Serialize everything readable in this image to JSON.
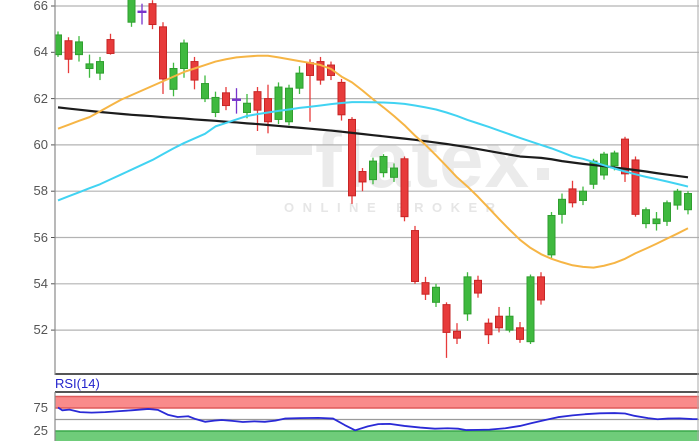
{
  "watermark": {
    "brand": "flatex",
    "tagline": "ONLINE BROKER"
  },
  "colors": {
    "up": "#3fb93f",
    "up_edge": "#2f9e2f",
    "down": "#e73b3b",
    "down_edge": "#c72525",
    "doji": "#7733cc",
    "sma_slow": "#1c1c1c",
    "sma_mid": "#f6b545",
    "sma_fast": "#41d3f2",
    "rsi_line": "#2a2ad6",
    "overbought_fill": "#f98b8b",
    "overbought_edge": "#df5a5a",
    "oversold_fill": "#6fcc7a",
    "oversold_edge": "#3aa84a",
    "grid": "#b3b3b3",
    "axis_text": "#555555",
    "border_dark": "#555555",
    "border_light": "#8a8a8a"
  },
  "chart_data": [
    {
      "type": "candlestick",
      "title": "",
      "xlabel": "",
      "ylabel": "",
      "grid": true,
      "x_ticks": [],
      "y_ticks": [
        66,
        64,
        62,
        60,
        58,
        56,
        54,
        52
      ],
      "ylim": [
        50.1,
        66.26
      ],
      "candles_note": "slot index, open, high, low, close, kind(u=up,d=down,j=doji); slot 6 has no visible candle (above chart top)",
      "candles": [
        [
          0,
          63.9,
          64.9,
          63.8,
          64.75,
          "u"
        ],
        [
          1,
          64.5,
          64.65,
          63.1,
          63.7,
          "d"
        ],
        [
          2,
          63.9,
          64.7,
          63.6,
          64.45,
          "u"
        ],
        [
          3,
          63.3,
          63.9,
          62.9,
          63.5,
          "u"
        ],
        [
          4,
          63.1,
          63.8,
          62.8,
          63.6,
          "u"
        ],
        [
          5,
          64.55,
          64.8,
          63.9,
          63.95,
          "d"
        ],
        [
          7,
          65.3,
          66.5,
          65.1,
          66.45,
          "u"
        ],
        [
          8,
          65.75,
          66.1,
          65.2,
          65.7,
          "j"
        ],
        [
          9,
          66.1,
          66.25,
          65.0,
          65.2,
          "d"
        ],
        [
          10,
          65.1,
          65.3,
          62.2,
          62.85,
          "d"
        ],
        [
          11,
          62.4,
          63.55,
          62.1,
          63.3,
          "u"
        ],
        [
          12,
          63.3,
          64.55,
          62.9,
          64.4,
          "u"
        ],
        [
          13,
          63.6,
          63.8,
          62.4,
          62.8,
          "d"
        ],
        [
          14,
          62.0,
          63.0,
          61.85,
          62.65,
          "u"
        ],
        [
          15,
          61.4,
          62.3,
          61.2,
          62.05,
          "u"
        ],
        [
          16,
          62.25,
          62.5,
          61.5,
          61.7,
          "d"
        ],
        [
          17,
          61.95,
          62.45,
          61.35,
          61.95,
          "j"
        ],
        [
          18,
          61.4,
          62.2,
          61.15,
          61.8,
          "u"
        ],
        [
          19,
          62.3,
          62.5,
          60.6,
          61.5,
          "d"
        ],
        [
          20,
          62.0,
          62.6,
          60.5,
          61.0,
          "d"
        ],
        [
          21,
          61.1,
          62.7,
          60.9,
          62.5,
          "u"
        ],
        [
          22,
          61.0,
          62.6,
          60.85,
          62.45,
          "u"
        ],
        [
          23,
          62.45,
          63.4,
          62.2,
          63.1,
          "u"
        ],
        [
          24,
          63.55,
          63.7,
          61.0,
          63.0,
          "d"
        ],
        [
          25,
          63.6,
          63.8,
          62.6,
          62.8,
          "d"
        ],
        [
          26,
          63.45,
          63.6,
          62.8,
          63.0,
          "d"
        ],
        [
          27,
          62.7,
          62.85,
          61.05,
          61.3,
          "d"
        ],
        [
          28,
          61.1,
          61.2,
          57.45,
          57.8,
          "d"
        ],
        [
          29,
          58.85,
          59.0,
          58.0,
          58.4,
          "d"
        ],
        [
          30,
          58.5,
          59.45,
          58.3,
          59.3,
          "u"
        ],
        [
          31,
          58.8,
          59.6,
          58.6,
          59.5,
          "u"
        ],
        [
          32,
          58.6,
          59.2,
          58.4,
          59.0,
          "u"
        ],
        [
          33,
          59.4,
          59.5,
          56.7,
          56.9,
          "d"
        ],
        [
          34,
          56.3,
          56.5,
          54.0,
          54.1,
          "d"
        ],
        [
          35,
          54.05,
          54.3,
          53.3,
          53.55,
          "d"
        ],
        [
          36,
          53.2,
          54.0,
          53.0,
          53.85,
          "u"
        ],
        [
          37,
          53.1,
          53.2,
          50.8,
          51.9,
          "d"
        ],
        [
          38,
          51.95,
          52.3,
          51.4,
          51.65,
          "d"
        ],
        [
          39,
          52.7,
          54.5,
          52.4,
          54.3,
          "u"
        ],
        [
          40,
          54.15,
          54.35,
          53.4,
          53.6,
          "d"
        ],
        [
          41,
          52.3,
          52.5,
          51.4,
          51.8,
          "d"
        ],
        [
          42,
          52.6,
          53.0,
          51.9,
          52.1,
          "d"
        ],
        [
          43,
          52.0,
          53.0,
          51.9,
          52.6,
          "u"
        ],
        [
          44,
          52.1,
          52.35,
          51.45,
          51.6,
          "d"
        ],
        [
          45,
          51.5,
          54.4,
          51.4,
          54.3,
          "u"
        ],
        [
          46,
          54.3,
          54.5,
          53.1,
          53.3,
          "d"
        ],
        [
          47,
          55.25,
          57.1,
          55.1,
          56.95,
          "u"
        ],
        [
          48,
          57.0,
          57.9,
          56.6,
          57.65,
          "u"
        ],
        [
          49,
          58.1,
          58.45,
          57.3,
          57.5,
          "d"
        ],
        [
          50,
          57.6,
          58.2,
          57.4,
          58.0,
          "u"
        ],
        [
          51,
          58.3,
          59.4,
          58.1,
          59.3,
          "u"
        ],
        [
          52,
          58.7,
          59.7,
          58.5,
          59.6,
          "u"
        ],
        [
          53,
          59.1,
          59.75,
          58.9,
          59.65,
          "u"
        ],
        [
          54,
          60.25,
          60.35,
          58.4,
          58.75,
          "d"
        ],
        [
          55,
          59.35,
          59.5,
          56.9,
          57.0,
          "d"
        ],
        [
          56,
          56.6,
          57.3,
          56.4,
          57.2,
          "u"
        ],
        [
          57,
          56.6,
          57.1,
          56.3,
          56.8,
          "u"
        ],
        [
          58,
          56.7,
          57.6,
          56.5,
          57.5,
          "u"
        ],
        [
          59,
          57.4,
          58.1,
          57.2,
          58.0,
          "u"
        ],
        [
          60,
          57.2,
          58.0,
          57.0,
          57.9,
          "u"
        ]
      ],
      "overlays": [
        {
          "name": "sma-slow-black",
          "color_key": "sma_slow",
          "values": [
            61.62,
            61.57,
            61.52,
            61.47,
            61.42,
            61.38,
            61.34,
            61.3,
            61.27,
            61.24,
            61.2,
            61.17,
            61.14,
            61.1,
            61.07,
            61.04,
            61.0,
            60.97,
            60.93,
            60.9,
            60.86,
            60.82,
            60.78,
            60.74,
            60.7,
            60.66,
            60.62,
            60.57,
            60.52,
            60.47,
            60.42,
            60.37,
            60.32,
            60.27,
            60.22,
            60.16,
            60.1,
            60.04,
            59.97,
            59.9,
            59.82,
            59.74,
            59.66,
            59.58,
            59.5,
            59.47,
            59.44,
            59.38,
            59.3,
            59.24,
            59.18,
            59.13,
            59.08,
            59.02,
            58.97,
            58.91,
            58.85,
            58.78,
            58.72,
            58.66,
            58.6
          ]
        },
        {
          "name": "sma-medium-orange",
          "color_key": "sma_mid",
          "values": [
            60.7,
            60.87,
            61.04,
            61.2,
            61.45,
            61.7,
            61.95,
            62.15,
            62.35,
            62.55,
            62.75,
            62.95,
            63.15,
            63.3,
            63.45,
            63.6,
            63.7,
            63.78,
            63.82,
            63.85,
            63.85,
            63.78,
            63.7,
            63.62,
            63.54,
            63.45,
            63.28,
            62.95,
            62.7,
            62.35,
            61.97,
            61.62,
            61.25,
            60.85,
            60.4,
            60.0,
            59.55,
            59.08,
            58.6,
            58.2,
            57.76,
            57.28,
            56.8,
            56.34,
            55.9,
            55.55,
            55.28,
            55.08,
            54.93,
            54.8,
            54.73,
            54.7,
            54.78,
            54.9,
            55.08,
            55.32,
            55.52,
            55.73,
            55.95,
            56.17,
            56.4
          ]
        },
        {
          "name": "sma-fast-cyan",
          "color_key": "sma_fast",
          "values": [
            57.6,
            57.78,
            57.95,
            58.13,
            58.3,
            58.51,
            58.72,
            58.93,
            59.14,
            59.35,
            59.6,
            59.85,
            60.08,
            60.28,
            60.48,
            60.8,
            60.95,
            61.1,
            61.25,
            61.33,
            61.4,
            61.47,
            61.53,
            61.6,
            61.65,
            61.7,
            61.76,
            61.81,
            61.85,
            61.85,
            61.84,
            61.83,
            61.81,
            61.77,
            61.7,
            61.62,
            61.53,
            61.4,
            61.25,
            61.08,
            60.93,
            60.78,
            60.62,
            60.46,
            60.3,
            60.15,
            60.0,
            59.85,
            59.68,
            59.5,
            59.4,
            59.26,
            59.12,
            58.98,
            58.85,
            58.73,
            58.62,
            58.52,
            58.42,
            58.31,
            58.2
          ]
        }
      ]
    },
    {
      "type": "line",
      "indicator": "RSI(14)",
      "y_ticks": [
        75,
        25
      ],
      "ylim": [
        0,
        100
      ],
      "midline": 50,
      "bands": [
        {
          "name": "overbought",
          "range": [
            75,
            100
          ]
        },
        {
          "name": "oversold",
          "range": [
            0,
            25
          ]
        }
      ],
      "points_note": "slot index (same x scale as candles), RSI value",
      "points": [
        [
          0,
          76
        ],
        [
          0.4,
          70
        ],
        [
          1.1,
          71.5
        ],
        [
          2.1,
          66
        ],
        [
          3.2,
          65
        ],
        [
          4.5,
          66
        ],
        [
          5.7,
          68
        ],
        [
          7,
          70
        ],
        [
          8.6,
          73
        ],
        [
          9.5,
          71
        ],
        [
          10.5,
          60
        ],
        [
          11.4,
          55.5
        ],
        [
          12.4,
          57
        ],
        [
          13.1,
          51
        ],
        [
          14,
          45
        ],
        [
          14.9,
          47.5
        ],
        [
          15.6,
          49
        ],
        [
          16.6,
          47
        ],
        [
          17.6,
          44.5
        ],
        [
          18.7,
          46
        ],
        [
          19.7,
          45
        ],
        [
          20.7,
          47.5
        ],
        [
          21.6,
          52
        ],
        [
          23,
          53
        ],
        [
          24.8,
          53.5
        ],
        [
          26.2,
          52
        ],
        [
          27.3,
          38
        ],
        [
          28.3,
          26.5
        ],
        [
          29.5,
          35
        ],
        [
          30.5,
          40
        ],
        [
          31.6,
          40.5
        ],
        [
          33,
          36
        ],
        [
          34.5,
          32.5
        ],
        [
          35.9,
          30
        ],
        [
          37.1,
          31
        ],
        [
          38.1,
          30
        ],
        [
          38.9,
          27
        ],
        [
          40,
          27.5
        ],
        [
          41.1,
          28
        ],
        [
          42.6,
          31
        ],
        [
          44,
          36
        ],
        [
          45.1,
          42
        ],
        [
          46.4,
          49
        ],
        [
          47.6,
          55
        ],
        [
          49,
          59
        ],
        [
          50.2,
          61.5
        ],
        [
          51.6,
          63.5
        ],
        [
          53,
          64
        ],
        [
          54,
          63
        ],
        [
          54.9,
          58
        ],
        [
          56.2,
          53
        ],
        [
          57.1,
          50.5
        ],
        [
          58.1,
          52
        ],
        [
          59.2,
          52.5
        ],
        [
          60.4,
          51
        ],
        [
          61,
          50.8
        ]
      ]
    }
  ]
}
